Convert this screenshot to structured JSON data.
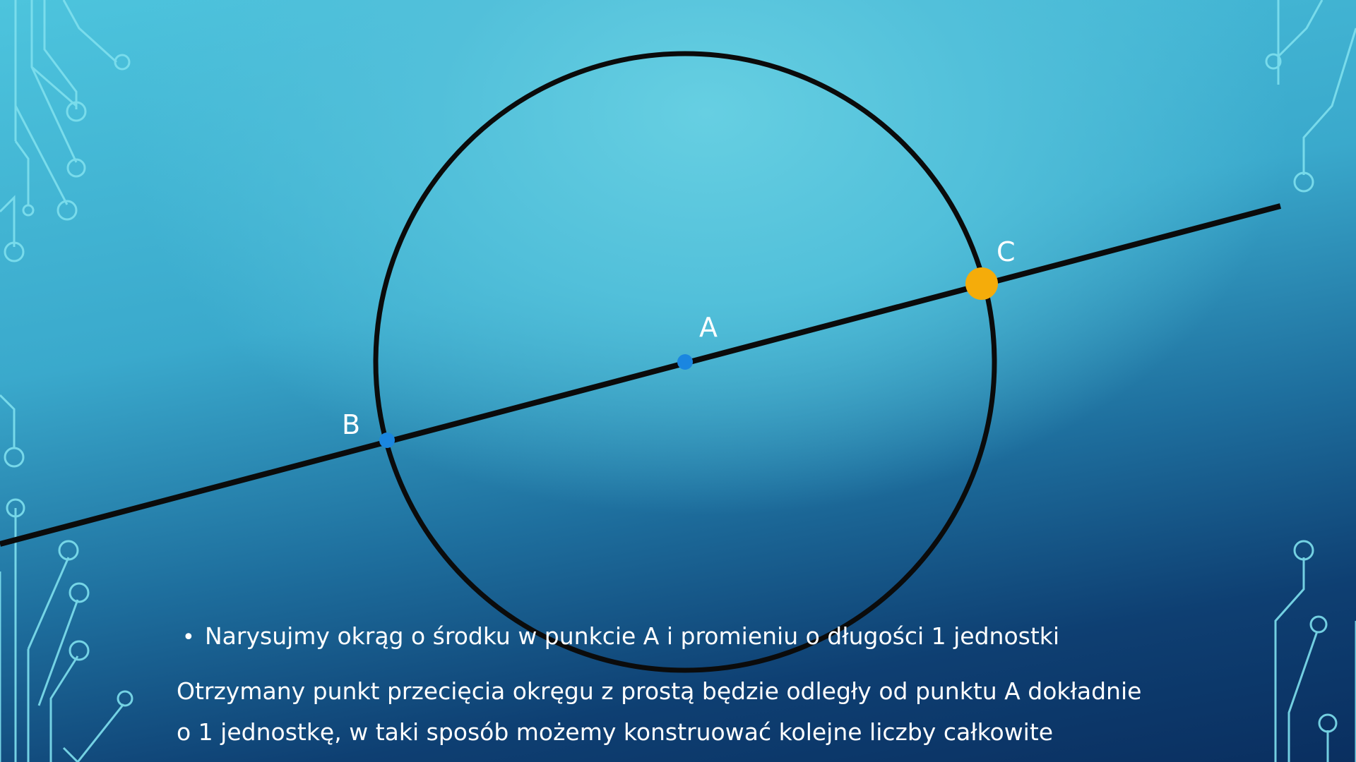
{
  "slide": {
    "point_labels": {
      "a": "A",
      "b": "B",
      "c": "C"
    },
    "bullet_text": "Narysujmy okrąg o środku w punkcie A i promieniu o długości 1 jednostki",
    "paragraph_line_1": "Otrzymany punkt przecięcia okręgu z prostą będzie odległy od punktu A dokładnie",
    "paragraph_line_2": "o 1 jednostkę, w taki sposób możemy konstruować kolejne liczby całkowite",
    "bullet_glyph": "•"
  },
  "colors": {
    "circle_stroke": "#0b0b0b",
    "line_stroke": "#0b0b0b",
    "point_blue": "#1a86e0",
    "point_orange": "#f5ac0a",
    "circuit_accent": "#7fe0ee",
    "text": "#ffffff"
  },
  "icons": {
    "left_decoration": "circuit-pattern",
    "right_decoration": "circuit-pattern"
  }
}
